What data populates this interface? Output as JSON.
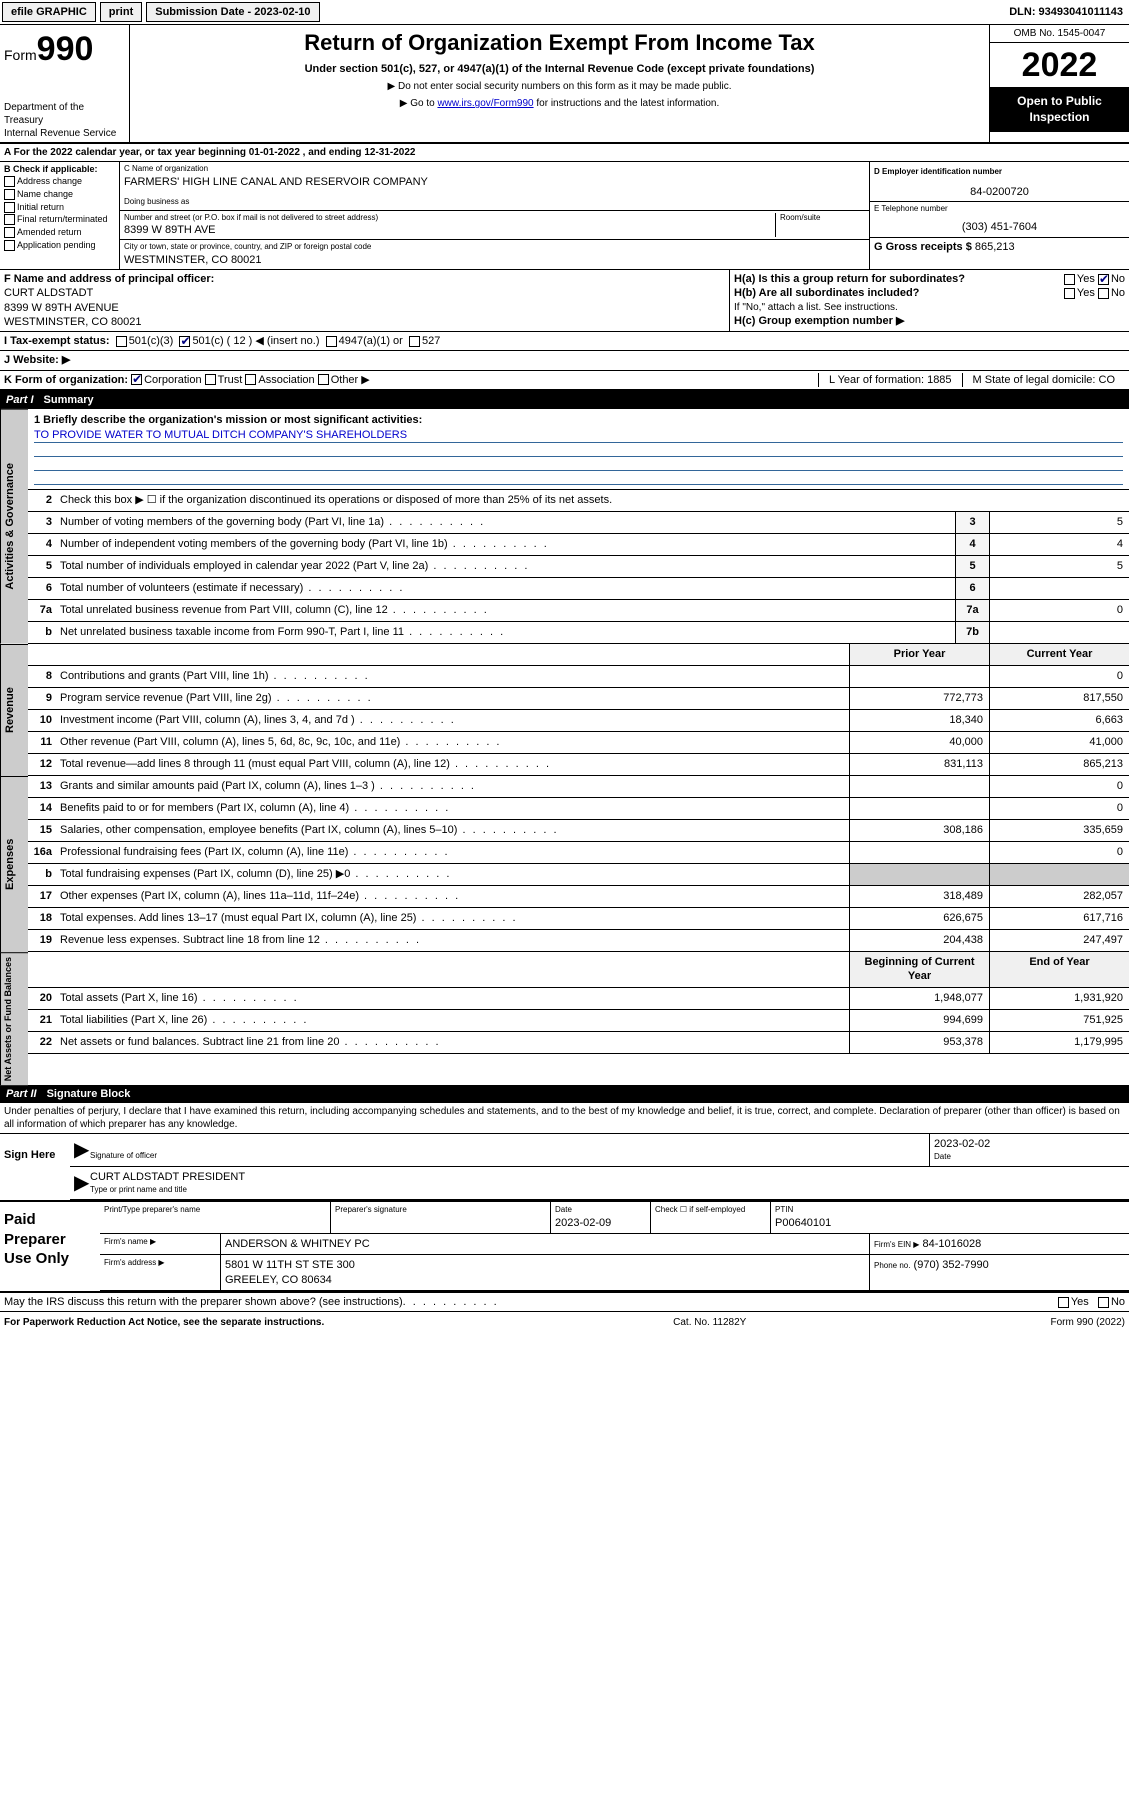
{
  "topbar": {
    "efile": "efile GRAPHIC",
    "print": "print",
    "sub_date_label": "Submission Date - 2023-02-10",
    "dln_label": "DLN: 93493041011143"
  },
  "header": {
    "form_word": "Form",
    "form_num": "990",
    "dept": "Department of the Treasury",
    "irs": "Internal Revenue Service",
    "title": "Return of Organization Exempt From Income Tax",
    "subtitle": "Under section 501(c), 527, or 4947(a)(1) of the Internal Revenue Code (except private foundations)",
    "instr1": "▶ Do not enter social security numbers on this form as it may be made public.",
    "instr2_pre": "▶ Go to ",
    "instr2_link": "www.irs.gov/Form990",
    "instr2_post": " for instructions and the latest information.",
    "omb": "OMB No. 1545-0047",
    "year": "2022",
    "open": "Open to Public Inspection"
  },
  "row_a": "A For the 2022 calendar year, or tax year beginning 01-01-2022   , and ending 12-31-2022",
  "col_b": {
    "label": "B Check if applicable:",
    "opts": [
      "Address change",
      "Name change",
      "Initial return",
      "Final return/terminated",
      "Amended return",
      "Application pending"
    ]
  },
  "col_c": {
    "name_label": "C Name of organization",
    "name": "FARMERS' HIGH LINE CANAL AND RESERVOIR COMPANY",
    "dba_label": "Doing business as",
    "addr_label": "Number and street (or P.O. box if mail is not delivered to street address)",
    "room_label": "Room/suite",
    "addr": "8399 W 89TH AVE",
    "city_label": "City or town, state or province, country, and ZIP or foreign postal code",
    "city": "WESTMINSTER, CO  80021"
  },
  "col_de": {
    "d_label": "D Employer identification number",
    "d_val": "84-0200720",
    "e_label": "E Telephone number",
    "e_val": "(303) 451-7604",
    "g_label": "G Gross receipts $",
    "g_val": "865,213"
  },
  "block_f": {
    "label": "F Name and address of principal officer:",
    "name": "CURT ALDSTADT",
    "addr": "8399 W 89TH AVENUE",
    "city": "WESTMINSTER, CO  80021",
    "ha": "H(a)  Is this a group return for subordinates?",
    "ha_yes": "Yes",
    "ha_no": "No",
    "hb": "H(b)  Are all subordinates included?",
    "hb_yes": "Yes",
    "hb_no": "No",
    "hb_note": "If \"No,\" attach a list. See instructions.",
    "hc": "H(c)  Group exemption number ▶"
  },
  "row_i": {
    "label": "I  Tax-exempt status:",
    "o1": "501(c)(3)",
    "o2": "501(c) ( 12 ) ◀ (insert no.)",
    "o3": "4947(a)(1) or",
    "o4": "527"
  },
  "row_j": {
    "label": "J  Website: ▶"
  },
  "row_kl": {
    "k": "K Form of organization:",
    "k_opts": [
      "Corporation",
      "Trust",
      "Association",
      "Other ▶"
    ],
    "l": "L Year of formation: 1885",
    "m": "M State of legal domicile: CO"
  },
  "part1": {
    "label": "Part I",
    "title": "Summary"
  },
  "mission": {
    "q": "1  Briefly describe the organization's mission or most significant activities:",
    "text": "TO PROVIDE WATER TO MUTUAL DITCH COMPANY'S SHAREHOLDERS"
  },
  "gov_rows": [
    {
      "n": "2",
      "d": "Check this box ▶ ☐  if the organization discontinued its operations or disposed of more than 25% of its net assets.",
      "box": "",
      "v": ""
    },
    {
      "n": "3",
      "d": "Number of voting members of the governing body (Part VI, line 1a)",
      "box": "3",
      "v": "5"
    },
    {
      "n": "4",
      "d": "Number of independent voting members of the governing body (Part VI, line 1b)",
      "box": "4",
      "v": "4"
    },
    {
      "n": "5",
      "d": "Total number of individuals employed in calendar year 2022 (Part V, line 2a)",
      "box": "5",
      "v": "5"
    },
    {
      "n": "6",
      "d": "Total number of volunteers (estimate if necessary)",
      "box": "6",
      "v": ""
    },
    {
      "n": "7a",
      "d": "Total unrelated business revenue from Part VIII, column (C), line 12",
      "box": "7a",
      "v": "0"
    },
    {
      "n": "b",
      "d": "Net unrelated business taxable income from Form 990-T, Part I, line 11",
      "box": "7b",
      "v": ""
    }
  ],
  "twocol_head": {
    "c1": "Prior Year",
    "c2": "Current Year"
  },
  "rev_rows": [
    {
      "n": "8",
      "d": "Contributions and grants (Part VIII, line 1h)",
      "p": "",
      "c": "0"
    },
    {
      "n": "9",
      "d": "Program service revenue (Part VIII, line 2g)",
      "p": "772,773",
      "c": "817,550"
    },
    {
      "n": "10",
      "d": "Investment income (Part VIII, column (A), lines 3, 4, and 7d )",
      "p": "18,340",
      "c": "6,663"
    },
    {
      "n": "11",
      "d": "Other revenue (Part VIII, column (A), lines 5, 6d, 8c, 9c, 10c, and 11e)",
      "p": "40,000",
      "c": "41,000"
    },
    {
      "n": "12",
      "d": "Total revenue—add lines 8 through 11 (must equal Part VIII, column (A), line 12)",
      "p": "831,113",
      "c": "865,213"
    }
  ],
  "exp_rows": [
    {
      "n": "13",
      "d": "Grants and similar amounts paid (Part IX, column (A), lines 1–3 )",
      "p": "",
      "c": "0"
    },
    {
      "n": "14",
      "d": "Benefits paid to or for members (Part IX, column (A), line 4)",
      "p": "",
      "c": "0"
    },
    {
      "n": "15",
      "d": "Salaries, other compensation, employee benefits (Part IX, column (A), lines 5–10)",
      "p": "308,186",
      "c": "335,659"
    },
    {
      "n": "16a",
      "d": "Professional fundraising fees (Part IX, column (A), line 11e)",
      "p": "",
      "c": "0"
    },
    {
      "n": "b",
      "d": "Total fundraising expenses (Part IX, column (D), line 25) ▶0",
      "p": "__SHADE__",
      "c": "__SHADE__"
    },
    {
      "n": "17",
      "d": "Other expenses (Part IX, column (A), lines 11a–11d, 11f–24e)",
      "p": "318,489",
      "c": "282,057"
    },
    {
      "n": "18",
      "d": "Total expenses. Add lines 13–17 (must equal Part IX, column (A), line 25)",
      "p": "626,675",
      "c": "617,716"
    },
    {
      "n": "19",
      "d": "Revenue less expenses. Subtract line 18 from line 12",
      "p": "204,438",
      "c": "247,497"
    }
  ],
  "net_head": {
    "c1": "Beginning of Current Year",
    "c2": "End of Year"
  },
  "net_rows": [
    {
      "n": "20",
      "d": "Total assets (Part X, line 16)",
      "p": "1,948,077",
      "c": "1,931,920"
    },
    {
      "n": "21",
      "d": "Total liabilities (Part X, line 26)",
      "p": "994,699",
      "c": "751,925"
    },
    {
      "n": "22",
      "d": "Net assets or fund balances. Subtract line 21 from line 20",
      "p": "953,378",
      "c": "1,179,995"
    }
  ],
  "vtabs": {
    "gov": "Activities & Governance",
    "rev": "Revenue",
    "exp": "Expenses",
    "net": "Net Assets or Fund Balances"
  },
  "part2": {
    "label": "Part II",
    "title": "Signature Block"
  },
  "penalties": "Under penalties of perjury, I declare that I have examined this return, including accompanying schedules and statements, and to the best of my knowledge and belief, it is true, correct, and complete. Declaration of preparer (other than officer) is based on all information of which preparer has any knowledge.",
  "sign": {
    "here": "Sign Here",
    "sig_label": "Signature of officer",
    "date_label": "Date",
    "date": "2023-02-02",
    "name": "CURT ALDSTADT PRESIDENT",
    "name_label": "Type or print name and title"
  },
  "prep": {
    "title": "Paid Preparer Use Only",
    "h1": "Print/Type preparer's name",
    "h2": "Preparer's signature",
    "h3": "Date",
    "h3v": "2023-02-09",
    "h4": "Check ☐ if self-employed",
    "h5": "PTIN",
    "h5v": "P00640101",
    "firm_name_l": "Firm's name   ▶",
    "firm_name": "ANDERSON & WHITNEY PC",
    "firm_ein_l": "Firm's EIN ▶",
    "firm_ein": "84-1016028",
    "firm_addr_l": "Firm's address ▶",
    "firm_addr": "5801 W 11TH ST STE 300",
    "firm_city": "GREELEY, CO  80634",
    "phone_l": "Phone no.",
    "phone": "(970) 352-7990"
  },
  "may_discuss": "May the IRS discuss this return with the preparer shown above? (see instructions)",
  "may_yes": "Yes",
  "may_no": "No",
  "footer": {
    "l": "For Paperwork Reduction Act Notice, see the separate instructions.",
    "c": "Cat. No. 11282Y",
    "r": "Form 990 (2022)"
  }
}
